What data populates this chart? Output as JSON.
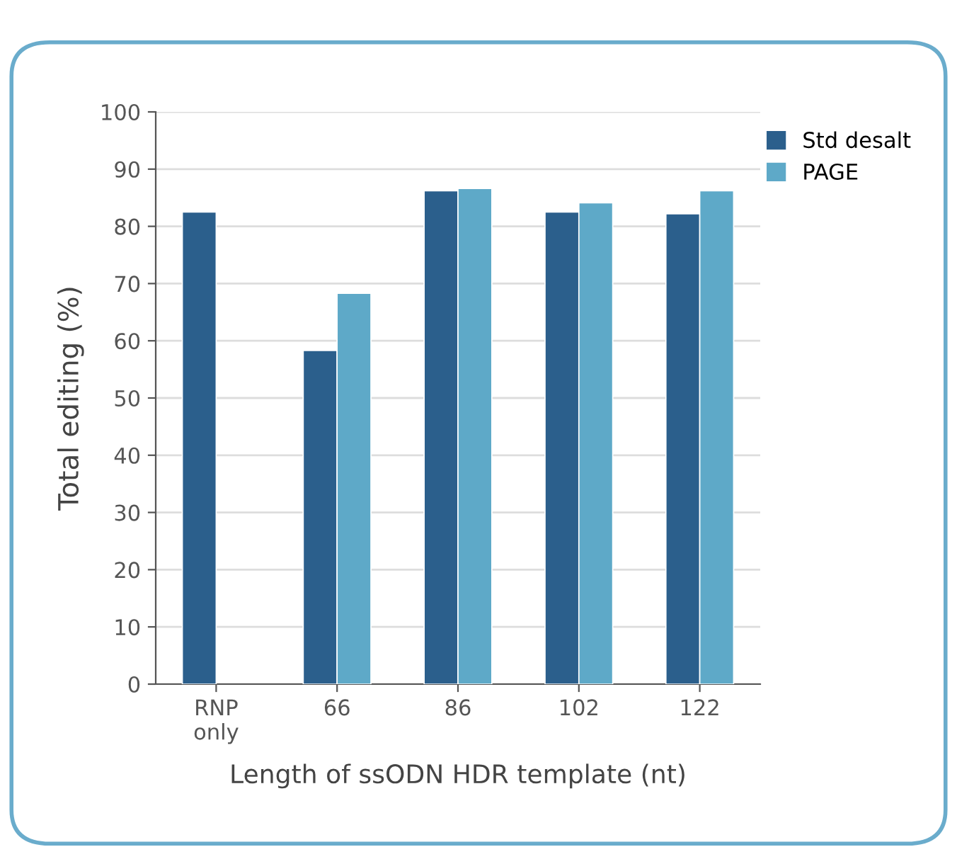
{
  "chart_data": {
    "type": "bar",
    "xlabel": "Length of ssODN HDR template (nt)",
    "ylabel": "Total editing (%)",
    "categories": [
      "RNP\nonly",
      "66",
      "86",
      "102",
      "122"
    ],
    "series": [
      {
        "name": "Std desalt",
        "color": "#2b5f8c",
        "values": [
          82.5,
          58.3,
          86.2,
          82.5,
          82.2
        ]
      },
      {
        "name": "PAGE",
        "color": "#5ea9c8",
        "values": [
          null,
          68.3,
          86.6,
          84.1,
          86.2
        ]
      }
    ],
    "ylim": [
      0,
      100
    ],
    "yticks": [
      0,
      10,
      20,
      30,
      40,
      50,
      60,
      70,
      80,
      90,
      100
    ],
    "grid": "y",
    "legend": "top right"
  }
}
